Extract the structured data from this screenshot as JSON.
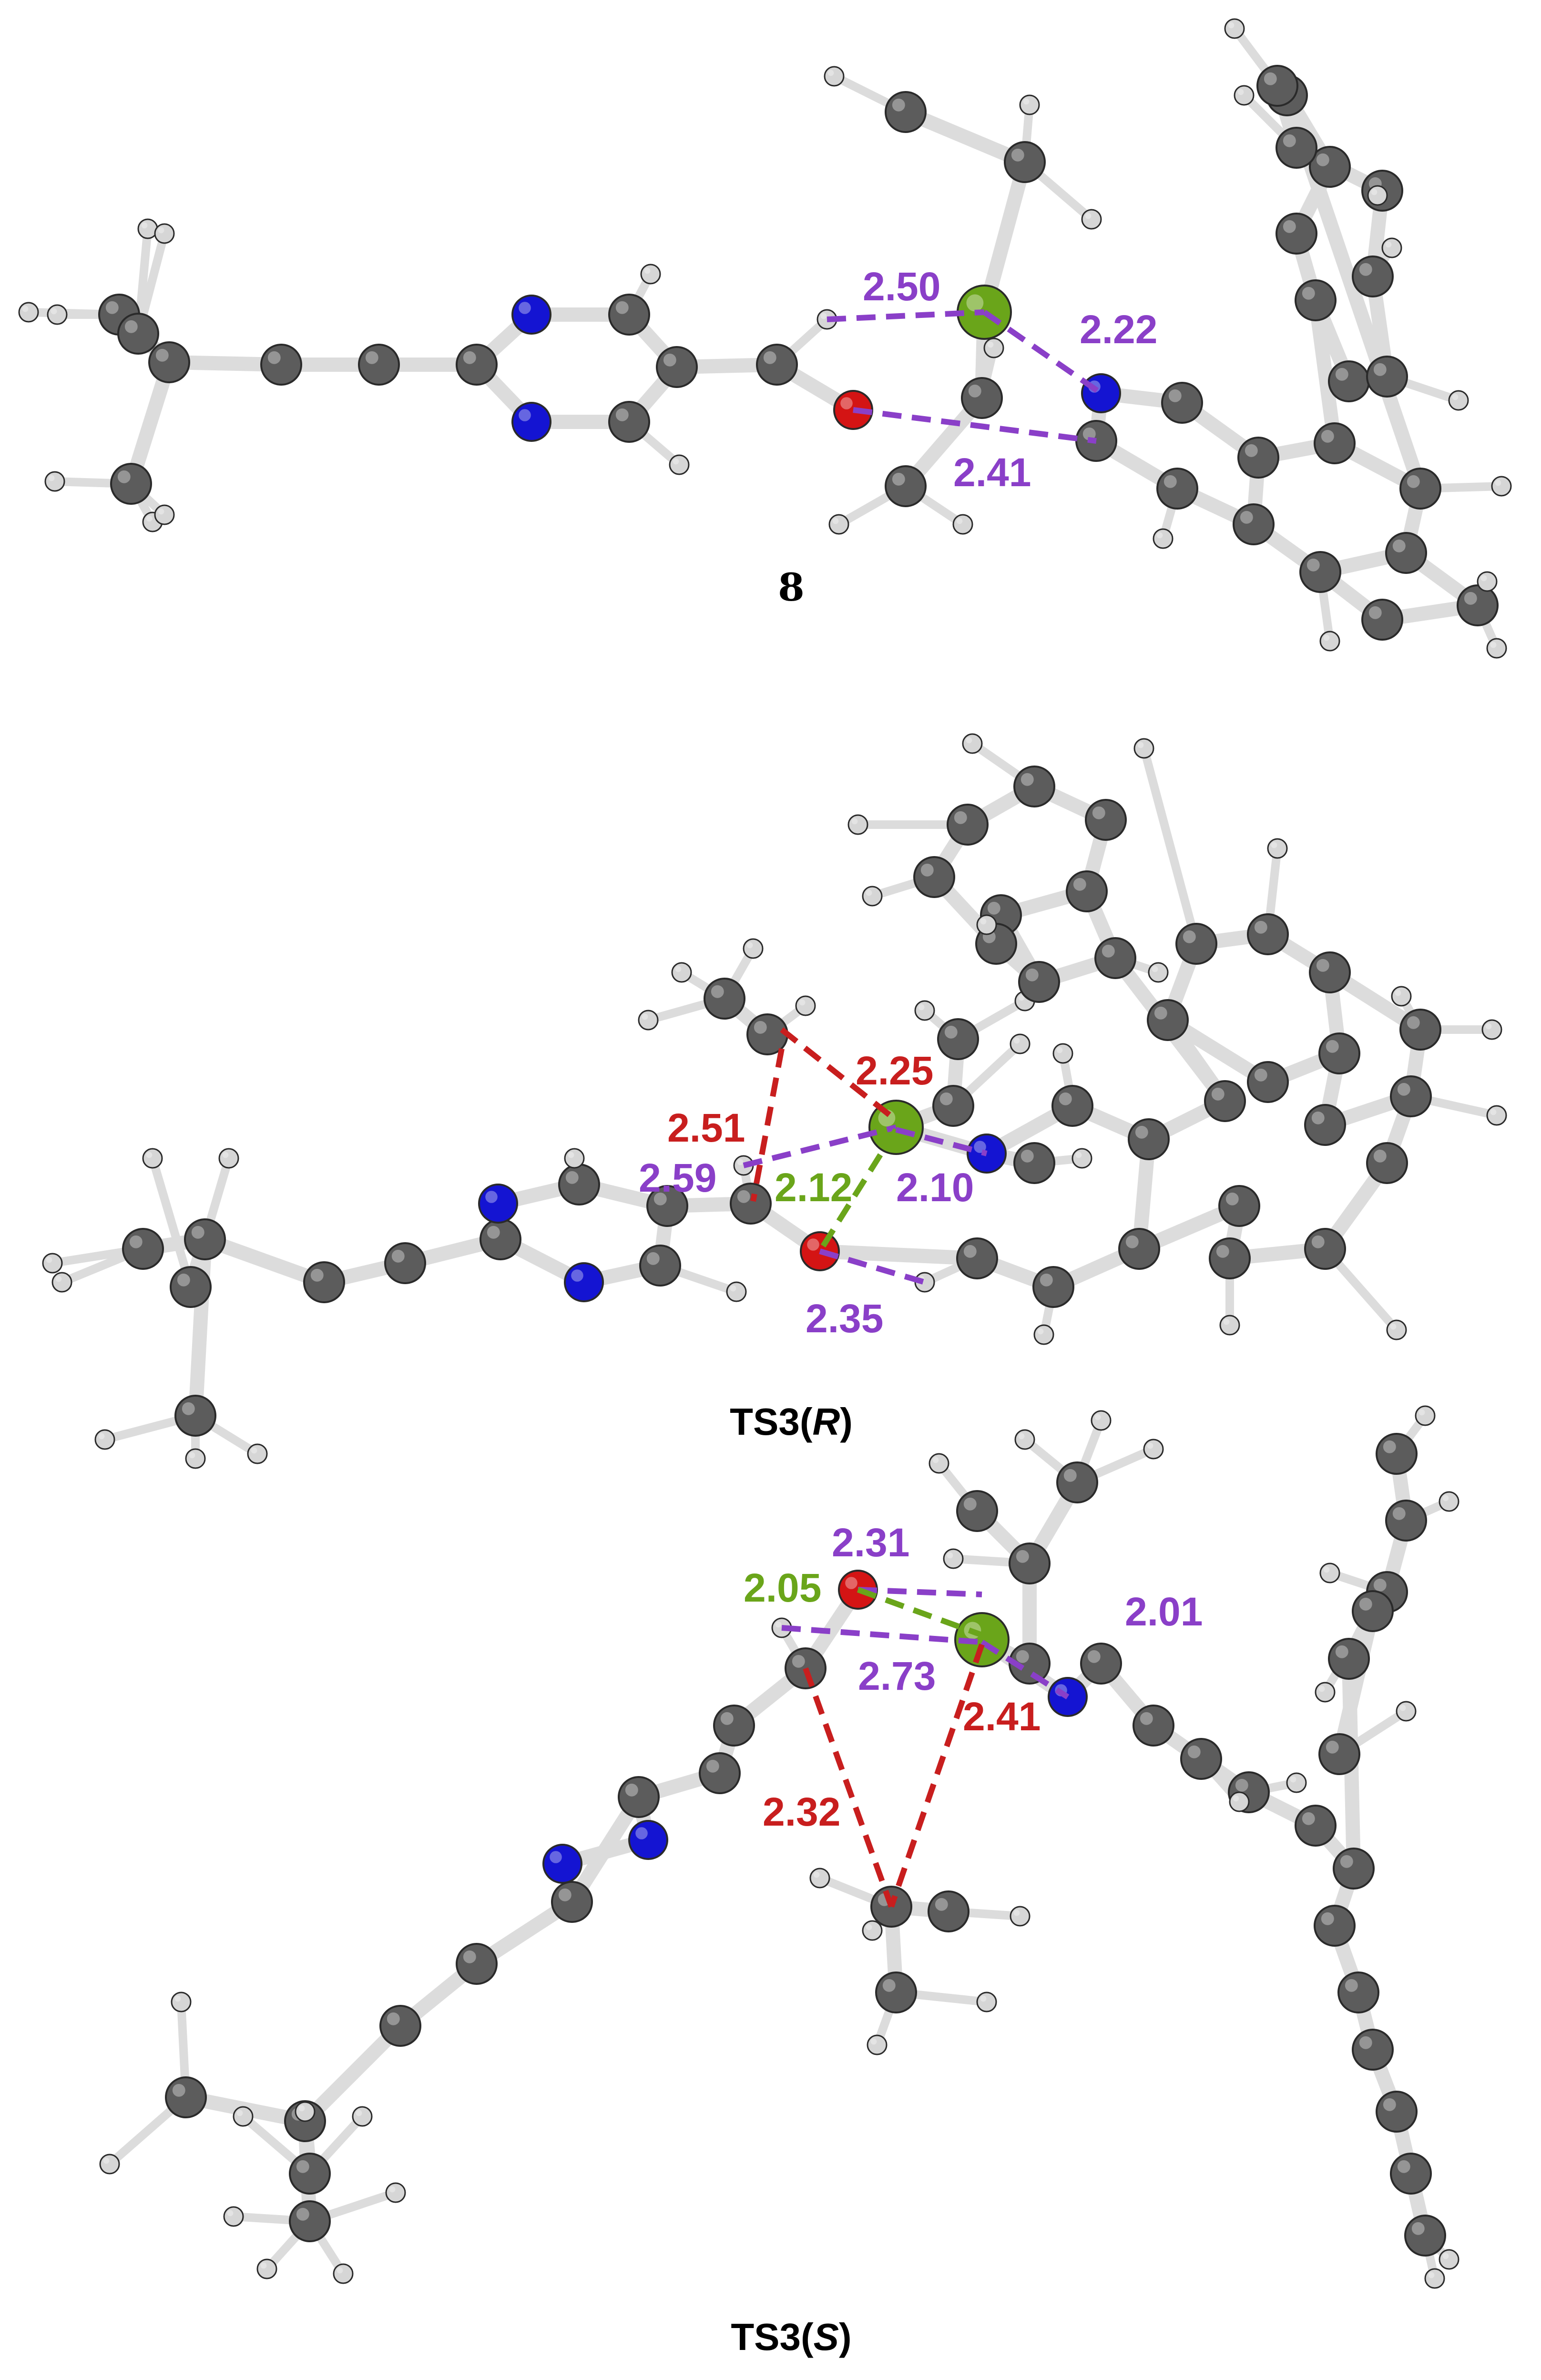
{
  "colors": {
    "carbon": "#5c5c5c",
    "hydrogen": "#d6d6d6",
    "nitrogen": "#1414d2",
    "oxygen": "#d41414",
    "metal": "#6aa51a",
    "bond": "#dcdcdc",
    "contact_purple": "#8a3fc8",
    "contact_red": "#c81e1e",
    "contact_green": "#6aa51a"
  },
  "structures": [
    {
      "id": "8",
      "caption": "8",
      "caption_main": "8",
      "caption_italic": "",
      "caption_suffix": "",
      "contacts": [
        {
          "label": "2.50",
          "color": "purple"
        },
        {
          "label": "2.22",
          "color": "purple"
        },
        {
          "label": "2.41",
          "color": "purple"
        }
      ]
    },
    {
      "id": "TS3R",
      "caption": "TS3(R)",
      "caption_main": "TS3(",
      "caption_italic": "R",
      "caption_suffix": ")",
      "contacts": [
        {
          "label": "2.25",
          "color": "red"
        },
        {
          "label": "2.51",
          "color": "red"
        },
        {
          "label": "2.59",
          "color": "purple"
        },
        {
          "label": "2.12",
          "color": "green"
        },
        {
          "label": "2.10",
          "color": "purple"
        },
        {
          "label": "2.35",
          "color": "purple"
        }
      ]
    },
    {
      "id": "TS3S",
      "caption": "TS3(S)",
      "caption_main": "TS3(",
      "caption_italic": "S",
      "caption_suffix": ")",
      "contacts": [
        {
          "label": "2.31",
          "color": "purple"
        },
        {
          "label": "2.05",
          "color": "green"
        },
        {
          "label": "2.01",
          "color": "purple"
        },
        {
          "label": "2.73",
          "color": "purple"
        },
        {
          "label": "2.41",
          "color": "red"
        },
        {
          "label": "2.32",
          "color": "red"
        }
      ]
    }
  ]
}
